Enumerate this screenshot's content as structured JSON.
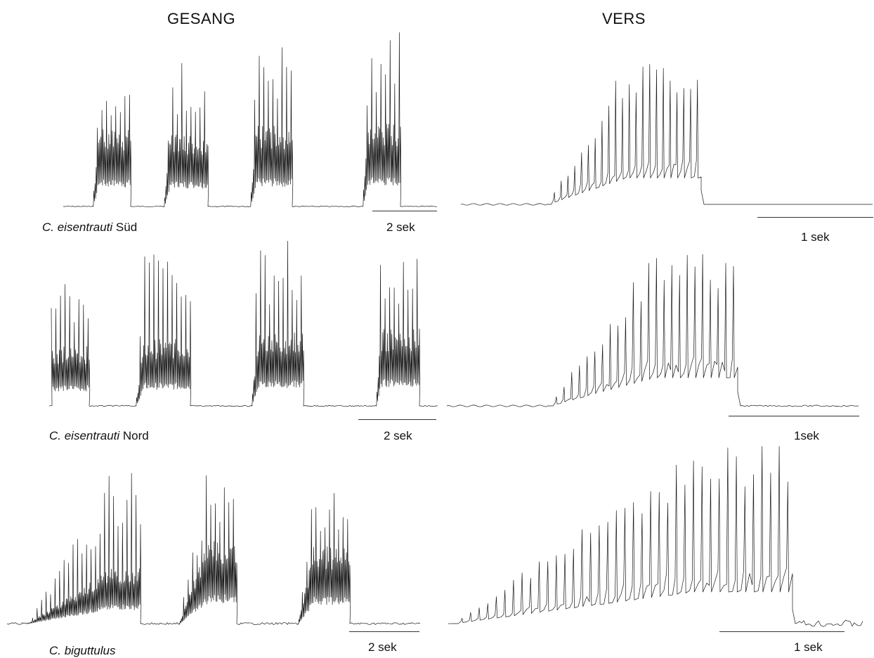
{
  "headers": {
    "left": "GESANG",
    "right": "VERS"
  },
  "rows": [
    {
      "species_italic": "C. eisentrauti",
      "species_suffix": " Süd",
      "gesang_scale": "2 sek",
      "vers_scale": "1 sek",
      "gesang_bursts": 4,
      "vers_pulses": 23
    },
    {
      "species_italic": "C. eisentrauti",
      "species_suffix": " Nord",
      "gesang_scale": "2 sek",
      "vers_scale": "1sek",
      "gesang_bursts": 4,
      "vers_pulses": 25
    },
    {
      "species_italic": "C. biguttulus",
      "species_suffix": "",
      "gesang_scale": "2 sek",
      "vers_scale": "1 sek",
      "gesang_bursts": 3,
      "vers_pulses": 40
    }
  ],
  "trace_color": "#1a1a1a"
}
